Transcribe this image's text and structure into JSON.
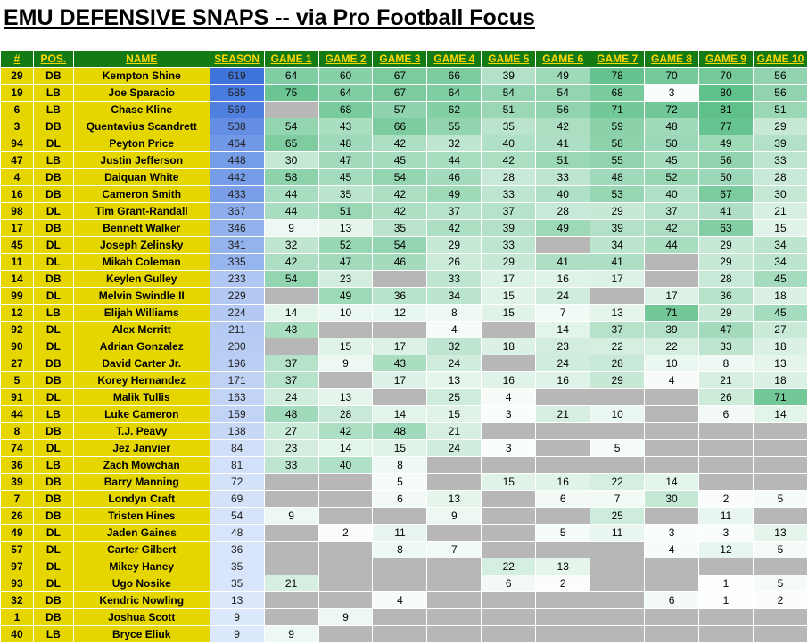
{
  "title": "EMU DEFENSIVE SNAPS -- via Pro Football Focus",
  "headers": [
    "#",
    "POS.",
    "NAME",
    "SEASON",
    "GAME 1",
    "GAME 2",
    "GAME 3",
    "GAME 4",
    "GAME 5",
    "GAME 6",
    "GAME 7",
    "GAME 8",
    "GAME 9",
    "GAME 10"
  ],
  "colors": {
    "header_bg": "#147a14",
    "header_text": "#ffd800",
    "player_cols_bg": "#e6d600",
    "empty_game_bg": "#b7b7b7",
    "season_scale_low": "#dde8fb",
    "season_scale_high": "#3f74dd",
    "game_scale_low": "#ffffff",
    "game_scale_high": "#5fc08a"
  },
  "rows": [
    {
      "num": "29",
      "pos": "DB",
      "name": "Kempton Shine",
      "season": "619",
      "games": [
        "64",
        "60",
        "67",
        "66",
        "39",
        "49",
        "78",
        "70",
        "70",
        "56"
      ]
    },
    {
      "num": "19",
      "pos": "LB",
      "name": "Joe Sparacio",
      "season": "585",
      "games": [
        "75",
        "64",
        "67",
        "64",
        "54",
        "54",
        "68",
        "3",
        "80",
        "56"
      ]
    },
    {
      "num": "6",
      "pos": "LB",
      "name": "Chase Kline",
      "season": "569",
      "games": [
        "",
        "68",
        "57",
        "62",
        "51",
        "56",
        "71",
        "72",
        "81",
        "51"
      ]
    },
    {
      "num": "3",
      "pos": "DB",
      "name": "Quentavius Scandrett",
      "season": "508",
      "games": [
        "54",
        "43",
        "66",
        "55",
        "35",
        "42",
        "59",
        "48",
        "77",
        "29"
      ]
    },
    {
      "num": "94",
      "pos": "DL",
      "name": "Peyton Price",
      "season": "464",
      "games": [
        "65",
        "48",
        "42",
        "32",
        "40",
        "41",
        "58",
        "50",
        "49",
        "39"
      ]
    },
    {
      "num": "47",
      "pos": "LB",
      "name": "Justin Jefferson",
      "season": "448",
      "games": [
        "30",
        "47",
        "45",
        "44",
        "42",
        "51",
        "55",
        "45",
        "56",
        "33"
      ]
    },
    {
      "num": "4",
      "pos": "DB",
      "name": "Daiquan White",
      "season": "442",
      "games": [
        "58",
        "45",
        "54",
        "46",
        "28",
        "33",
        "48",
        "52",
        "50",
        "28"
      ]
    },
    {
      "num": "16",
      "pos": "DB",
      "name": "Cameron Smith",
      "season": "433",
      "games": [
        "44",
        "35",
        "42",
        "49",
        "33",
        "40",
        "53",
        "40",
        "67",
        "30"
      ]
    },
    {
      "num": "98",
      "pos": "DL",
      "name": "Tim Grant-Randall",
      "season": "367",
      "games": [
        "44",
        "51",
        "42",
        "37",
        "37",
        "28",
        "29",
        "37",
        "41",
        "21"
      ]
    },
    {
      "num": "17",
      "pos": "DB",
      "name": "Bennett Walker",
      "season": "346",
      "games": [
        "9",
        "13",
        "35",
        "42",
        "39",
        "49",
        "39",
        "42",
        "63",
        "15"
      ]
    },
    {
      "num": "45",
      "pos": "DL",
      "name": "Joseph Zelinsky",
      "season": "341",
      "games": [
        "32",
        "52",
        "54",
        "29",
        "33",
        "",
        "34",
        "44",
        "29",
        "34"
      ]
    },
    {
      "num": "11",
      "pos": "DL",
      "name": "Mikah Coleman",
      "season": "335",
      "games": [
        "42",
        "47",
        "46",
        "26",
        "29",
        "41",
        "41",
        "",
        "29",
        "34"
      ]
    },
    {
      "num": "14",
      "pos": "DB",
      "name": "Keylen Gulley",
      "season": "233",
      "games": [
        "54",
        "23",
        "",
        "33",
        "17",
        "16",
        "17",
        "",
        "28",
        "45"
      ]
    },
    {
      "num": "99",
      "pos": "DL",
      "name": "Melvin Swindle II",
      "season": "229",
      "games": [
        "",
        "49",
        "36",
        "34",
        "15",
        "24",
        "",
        "17",
        "36",
        "18"
      ]
    },
    {
      "num": "12",
      "pos": "LB",
      "name": "Elijah Williams",
      "season": "224",
      "games": [
        "14",
        "10",
        "12",
        "8",
        "15",
        "7",
        "13",
        "71",
        "29",
        "45"
      ]
    },
    {
      "num": "92",
      "pos": "DL",
      "name": "Alex Merritt",
      "season": "211",
      "games": [
        "43",
        "",
        "",
        "4",
        "",
        "14",
        "37",
        "39",
        "47",
        "27"
      ]
    },
    {
      "num": "90",
      "pos": "DL",
      "name": "Adrian Gonzalez",
      "season": "200",
      "games": [
        "",
        "15",
        "17",
        "32",
        "18",
        "23",
        "22",
        "22",
        "33",
        "18"
      ]
    },
    {
      "num": "27",
      "pos": "DB",
      "name": "David Carter Jr.",
      "season": "196",
      "games": [
        "37",
        "9",
        "43",
        "24",
        "",
        "24",
        "28",
        "10",
        "8",
        "13"
      ]
    },
    {
      "num": "5",
      "pos": "DB",
      "name": "Korey Hernandez",
      "season": "171",
      "games": [
        "37",
        "",
        "17",
        "13",
        "16",
        "16",
        "29",
        "4",
        "21",
        "18"
      ]
    },
    {
      "num": "91",
      "pos": "DL",
      "name": "Malik Tullis",
      "season": "163",
      "games": [
        "24",
        "13",
        "",
        "25",
        "4",
        "",
        "",
        "",
        "26",
        "71"
      ]
    },
    {
      "num": "44",
      "pos": "LB",
      "name": "Luke Cameron",
      "season": "159",
      "games": [
        "48",
        "28",
        "14",
        "15",
        "3",
        "21",
        "10",
        "",
        "6",
        "14"
      ]
    },
    {
      "num": "8",
      "pos": "DB",
      "name": "T.J. Peavy",
      "season": "138",
      "games": [
        "27",
        "42",
        "48",
        "21",
        "",
        "",
        "",
        "",
        "",
        ""
      ]
    },
    {
      "num": "74",
      "pos": "DL",
      "name": "Jez Janvier",
      "season": "84",
      "games": [
        "23",
        "14",
        "15",
        "24",
        "3",
        "",
        "5",
        "",
        "",
        ""
      ]
    },
    {
      "num": "36",
      "pos": "LB",
      "name": "Zach Mowchan",
      "season": "81",
      "games": [
        "33",
        "40",
        "8",
        "",
        "",
        "",
        "",
        "",
        "",
        ""
      ]
    },
    {
      "num": "39",
      "pos": "DB",
      "name": "Barry Manning",
      "season": "72",
      "games": [
        "",
        "",
        "5",
        "",
        "15",
        "16",
        "22",
        "14",
        "",
        ""
      ]
    },
    {
      "num": "7",
      "pos": "DB",
      "name": "Londyn Craft",
      "season": "69",
      "games": [
        "",
        "",
        "6",
        "13",
        "",
        "6",
        "7",
        "30",
        "2",
        "5"
      ]
    },
    {
      "num": "26",
      "pos": "DB",
      "name": "Tristen Hines",
      "season": "54",
      "games": [
        "9",
        "",
        "",
        "9",
        "",
        "",
        "25",
        "",
        "11",
        ""
      ]
    },
    {
      "num": "49",
      "pos": "DL",
      "name": "Jaden Gaines",
      "season": "48",
      "games": [
        "",
        "2",
        "11",
        "",
        "",
        "5",
        "11",
        "3",
        "3",
        "13"
      ]
    },
    {
      "num": "57",
      "pos": "DL",
      "name": "Carter Gilbert",
      "season": "36",
      "games": [
        "",
        "",
        "8",
        "7",
        "",
        "",
        "",
        "4",
        "12",
        "5"
      ]
    },
    {
      "num": "97",
      "pos": "DL",
      "name": "Mikey Haney",
      "season": "35",
      "games": [
        "",
        "",
        "",
        "",
        "22",
        "13",
        "",
        "",
        "",
        ""
      ]
    },
    {
      "num": "93",
      "pos": "DL",
      "name": "Ugo Nosike",
      "season": "35",
      "games": [
        "21",
        "",
        "",
        "",
        "6",
        "2",
        "",
        "",
        "1",
        "5"
      ]
    },
    {
      "num": "32",
      "pos": "DB",
      "name": "Kendric Nowling",
      "season": "13",
      "games": [
        "",
        "",
        "4",
        "",
        "",
        "",
        "",
        "6",
        "1",
        "2"
      ]
    },
    {
      "num": "1",
      "pos": "DB",
      "name": "Joshua Scott",
      "season": "9",
      "games": [
        "",
        "9",
        "",
        "",
        "",
        "",
        "",
        "",
        "",
        ""
      ]
    },
    {
      "num": "40",
      "pos": "LB",
      "name": "Bryce Eliuk",
      "season": "9",
      "games": [
        "9",
        "",
        "",
        "",
        "",
        "",
        "",
        "",
        "",
        ""
      ]
    }
  ]
}
